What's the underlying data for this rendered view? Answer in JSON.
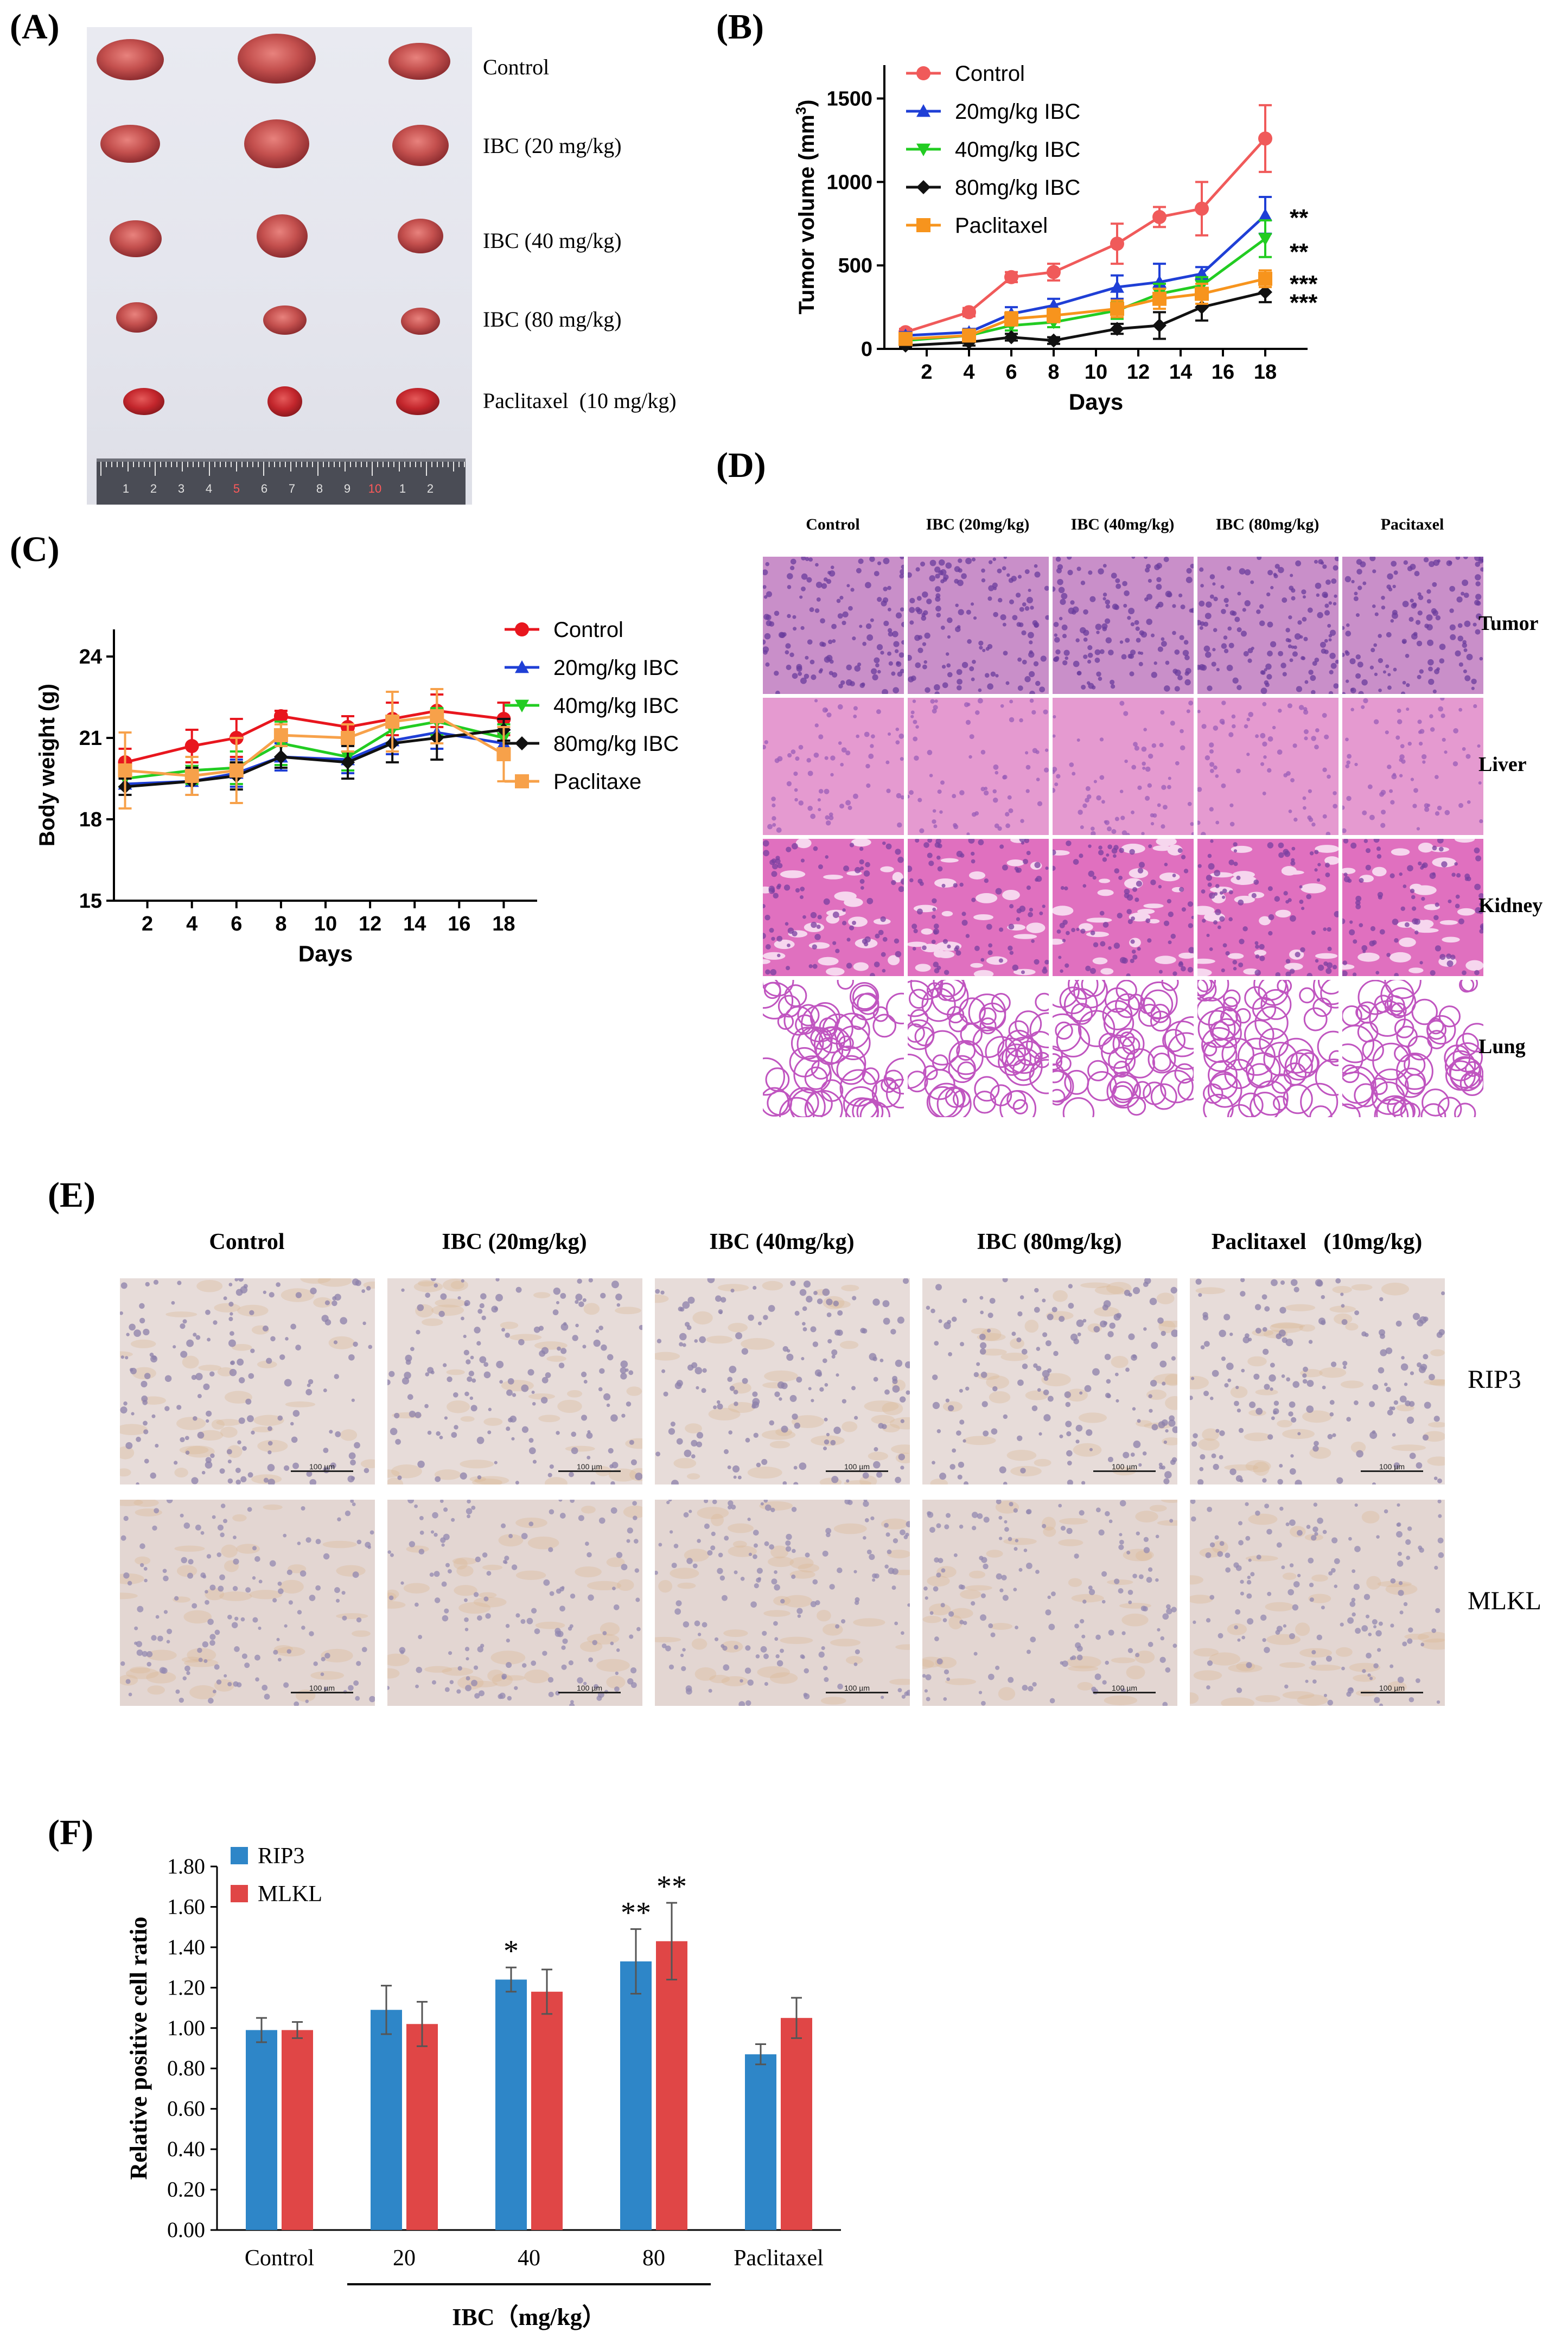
{
  "panels": {
    "a": "(A)",
    "b": "(B)",
    "c": "(C)",
    "d": "(D)",
    "e": "(E)",
    "f": "(F)"
  },
  "panelA": {
    "labels": [
      "Control",
      "IBC (20 mg/kg)",
      "IBC (40 mg/kg)",
      "IBC (80 mg/kg)",
      "Paclitaxel  (10 mg/kg)"
    ],
    "ruler_numbers": [
      "1",
      "2",
      "3",
      "4",
      "5",
      "6",
      "7",
      "8",
      "9",
      "10",
      "1",
      "2"
    ]
  },
  "panelD": {
    "columns": [
      "Control",
      "IBC (20mg/kg)",
      "IBC (40mg/kg)",
      "IBC (80mg/kg)",
      "Pacitaxel"
    ],
    "rows": [
      "Tumor",
      "Liver",
      "Kidney",
      "Lung"
    ]
  },
  "panelE": {
    "columns": [
      "Control",
      "IBC (20mg/kg)",
      "IBC (40mg/kg)",
      "IBC (80mg/kg)",
      "Paclitaxel   (10mg/kg)"
    ],
    "rows": [
      "RIP3",
      "MLKL"
    ],
    "scale_label": "100 µm"
  },
  "chart_data": [
    {
      "id": "B",
      "type": "line",
      "xlabel": "Days",
      "ylabel": "Tumor volume (mm",
      "ylabel_sup": "3",
      "ylabel_close": ")",
      "ylim": [
        0,
        1700
      ],
      "xlim": [
        0,
        20
      ],
      "yticks": [
        0,
        500,
        1000,
        1500
      ],
      "xticks": [
        2,
        4,
        6,
        8,
        10,
        12,
        14,
        16,
        18
      ],
      "x": [
        1,
        4,
        6,
        8,
        11,
        13,
        15,
        18
      ],
      "series": [
        {
          "name": "Control",
          "color": "#f05a5a",
          "marker": "circle",
          "values": [
            100,
            220,
            430,
            460,
            630,
            790,
            840,
            1260
          ],
          "err": [
            20,
            25,
            30,
            50,
            120,
            60,
            160,
            200
          ]
        },
        {
          "name": "20mg/kg IBC",
          "color": "#1f3fd6",
          "marker": "triangle-up",
          "values": [
            80,
            100,
            210,
            260,
            370,
            400,
            450,
            800
          ],
          "err": [
            20,
            20,
            40,
            40,
            70,
            110,
            40,
            110
          ]
        },
        {
          "name": "40mg/kg IBC",
          "color": "#22cc22",
          "marker": "triangle-down",
          "values": [
            50,
            80,
            140,
            160,
            230,
            330,
            380,
            660
          ],
          "err": [
            15,
            20,
            30,
            30,
            50,
            60,
            50,
            110
          ]
        },
        {
          "name": "80mg/kg IBC",
          "color": "#111111",
          "marker": "diamond",
          "values": [
            20,
            40,
            70,
            50,
            120,
            140,
            250,
            340
          ],
          "err": [
            10,
            20,
            20,
            20,
            30,
            80,
            80,
            60
          ]
        },
        {
          "name": "Paclitaxel",
          "color": "#f7941d",
          "marker": "square",
          "values": [
            60,
            80,
            180,
            200,
            240,
            300,
            330,
            420
          ],
          "err": [
            20,
            20,
            40,
            40,
            50,
            60,
            60,
            50
          ]
        }
      ],
      "annotations": [
        "**",
        "**",
        "***",
        "***"
      ]
    },
    {
      "id": "C",
      "type": "line",
      "xlabel": "Days",
      "ylabel": "Body weight (g)",
      "ylim": [
        15,
        25
      ],
      "xlim": [
        0.5,
        19.5
      ],
      "yticks": [
        15,
        18,
        21,
        24
      ],
      "xticks": [
        2,
        4,
        6,
        8,
        10,
        12,
        14,
        16,
        18
      ],
      "x": [
        1,
        4,
        6,
        8,
        11,
        13,
        15,
        18
      ],
      "series": [
        {
          "name": "Control",
          "color": "#e8161e",
          "marker": "circle",
          "values": [
            20.1,
            20.7,
            21.0,
            21.8,
            21.4,
            21.7,
            22.0,
            21.7
          ],
          "err": [
            0.5,
            0.6,
            0.7,
            0.2,
            0.4,
            0.6,
            0.6,
            0.6
          ]
        },
        {
          "name": "20mg/kg IBC",
          "color": "#1f3fd6",
          "marker": "triangle-up",
          "values": [
            19.3,
            19.4,
            19.7,
            20.3,
            20.2,
            20.9,
            21.2,
            20.8
          ],
          "err": [
            0.4,
            0.5,
            0.5,
            0.5,
            0.5,
            0.5,
            0.6,
            0.5
          ]
        },
        {
          "name": "40mg/kg IBC",
          "color": "#22cc22",
          "marker": "triangle-down",
          "values": [
            19.5,
            19.8,
            19.9,
            20.8,
            20.3,
            21.3,
            21.6,
            21.0
          ],
          "err": [
            0.3,
            0.5,
            0.6,
            0.8,
            0.5,
            0.5,
            0.5,
            0.5
          ]
        },
        {
          "name": "80mg/kg IBC",
          "color": "#111111",
          "marker": "diamond",
          "values": [
            19.2,
            19.4,
            19.6,
            20.3,
            20.1,
            20.8,
            21.0,
            21.3
          ],
          "err": [
            0.3,
            0.5,
            0.5,
            0.4,
            0.6,
            0.7,
            0.8,
            0.4
          ]
        },
        {
          "name": "Paclitaxe",
          "color": "#f7a14a",
          "marker": "square",
          "values": [
            19.8,
            19.6,
            19.8,
            21.1,
            21.0,
            21.6,
            21.8,
            20.4
          ],
          "err": [
            1.4,
            0.7,
            1.2,
            0.4,
            0.5,
            1.1,
            1.0,
            1.0
          ]
        }
      ]
    },
    {
      "id": "F",
      "type": "bar",
      "ylabel": "Relative positive cell ratio",
      "ylim": [
        0,
        1.8
      ],
      "yticks": [
        "0.00",
        "0.20",
        "0.40",
        "0.60",
        "0.80",
        "1.00",
        "1.20",
        "1.40",
        "1.60",
        "1.80"
      ],
      "categories": [
        "Control",
        "20",
        "40",
        "80",
        "Paclitaxel"
      ],
      "group_label": "IBC（mg/kg）",
      "series": [
        {
          "name": "RIP3",
          "color": "#2e86c8",
          "values": [
            0.99,
            1.09,
            1.24,
            1.33,
            0.87
          ],
          "err": [
            0.06,
            0.12,
            0.06,
            0.16,
            0.05
          ],
          "stars": [
            "",
            "",
            "*",
            "**",
            ""
          ]
        },
        {
          "name": "MLKL",
          "color": "#e04646",
          "values": [
            0.99,
            1.02,
            1.18,
            1.43,
            1.05
          ],
          "err": [
            0.04,
            0.11,
            0.11,
            0.19,
            0.1
          ],
          "stars": [
            "",
            "",
            "",
            "**",
            ""
          ]
        }
      ]
    }
  ]
}
